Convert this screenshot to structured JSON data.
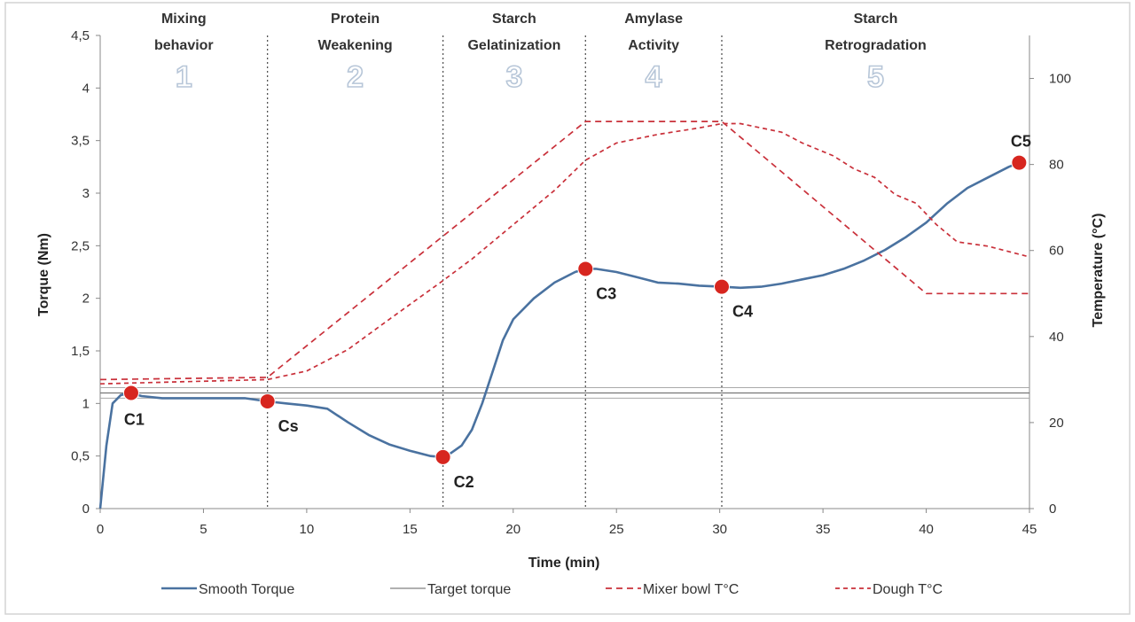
{
  "chart_data": {
    "type": "line",
    "xlabel": "Time (min)",
    "ylabel": "Torque (Nm)",
    "y2label": "Temperature (°C)",
    "xlim": [
      0,
      45
    ],
    "ylim": [
      0,
      4.5
    ],
    "y2lim": [
      0,
      110
    ],
    "xticks": [
      0,
      5,
      10,
      15,
      20,
      25,
      30,
      35,
      40,
      45
    ],
    "xtick_labels": [
      "0",
      "5",
      "10",
      "15",
      "20",
      "25",
      "30",
      "35",
      "40",
      "45"
    ],
    "yticks": [
      0,
      0.5,
      1,
      1.5,
      2,
      2.5,
      3,
      3.5,
      4,
      4.5
    ],
    "ytick_labels": [
      "0",
      "0,5",
      "1",
      "1,5",
      "2",
      "2,5",
      "3",
      "3,5",
      "4",
      "4,5"
    ],
    "y2ticks": [
      0,
      20,
      40,
      60,
      80,
      100
    ],
    "y2tick_labels": [
      "0",
      "20",
      "40",
      "60",
      "80",
      "100"
    ],
    "phase_boundaries": [
      8.1,
      16.6,
      23.5,
      30.1
    ],
    "phases": [
      {
        "number": "1",
        "title": [
          "Mixing",
          "behavior"
        ],
        "start": 0,
        "end": 8.1
      },
      {
        "number": "2",
        "title": [
          "Protein",
          "Weakening"
        ],
        "start": 8.1,
        "end": 16.6
      },
      {
        "number": "3",
        "title": [
          "Starch",
          "Gelatinization"
        ],
        "start": 16.6,
        "end": 23.5
      },
      {
        "number": "4",
        "title": [
          "Amylase",
          "Activity"
        ],
        "start": 23.5,
        "end": 30.1
      },
      {
        "number": "5",
        "title": [
          "Starch",
          "Retrogradation"
        ],
        "start": 30.1,
        "end": 45
      }
    ],
    "target_torque": {
      "center": 1.1,
      "band": [
        1.05,
        1.15
      ]
    },
    "series": [
      {
        "name": "Smooth Torque",
        "axis": "left",
        "color": "#4a72a0",
        "style": "solid",
        "x": [
          0,
          0.3,
          0.6,
          1.0,
          1.5,
          2,
          3,
          4,
          5,
          6,
          7,
          8.1,
          9,
          10,
          11,
          12,
          13,
          14,
          15,
          16,
          16.6,
          17,
          17.5,
          18,
          18.5,
          19,
          19.5,
          20,
          21,
          22,
          23,
          23.5,
          24,
          25,
          26,
          27,
          28,
          29,
          30.1,
          31,
          32,
          33,
          34,
          35,
          36,
          37,
          38,
          39,
          40,
          41,
          42,
          43,
          44,
          44.5
        ],
        "y": [
          0,
          0.6,
          1.0,
          1.08,
          1.1,
          1.07,
          1.05,
          1.05,
          1.05,
          1.05,
          1.05,
          1.02,
          1.0,
          0.98,
          0.95,
          0.82,
          0.7,
          0.61,
          0.55,
          0.5,
          0.49,
          0.53,
          0.6,
          0.75,
          1.0,
          1.3,
          1.6,
          1.8,
          2.0,
          2.15,
          2.25,
          2.28,
          2.28,
          2.25,
          2.2,
          2.15,
          2.14,
          2.12,
          2.11,
          2.1,
          2.11,
          2.14,
          2.18,
          2.22,
          2.28,
          2.36,
          2.46,
          2.58,
          2.72,
          2.9,
          3.05,
          3.15,
          3.25,
          3.29
        ]
      },
      {
        "name": "Target torque",
        "axis": "left",
        "color": "#808080",
        "style": "thin",
        "x": [
          0,
          45
        ],
        "y": [
          1.1,
          1.1
        ]
      },
      {
        "name": "Mixer bowl T°C",
        "axis": "right",
        "color": "#c9303a",
        "style": "dashed",
        "x": [
          0,
          8.1,
          23.5,
          30.1,
          40,
          45
        ],
        "y": [
          30,
          30.5,
          90,
          90,
          50,
          50
        ]
      },
      {
        "name": "Dough T°C",
        "axis": "right",
        "color": "#c9303a",
        "style": "dashed-fine",
        "x": [
          0,
          8.1,
          10,
          12,
          14,
          16.6,
          18,
          20,
          22,
          23.5,
          25,
          27,
          29,
          30.1,
          31,
          33,
          34,
          35.5,
          36.5,
          37.5,
          38.5,
          39.5,
          40.5,
          41.5,
          43,
          45
        ],
        "y": [
          29,
          30,
          32,
          37,
          44,
          53,
          58,
          66,
          74,
          81,
          85,
          87,
          88.5,
          89.5,
          89.5,
          87.5,
          85,
          82,
          79,
          77,
          73,
          71,
          66,
          62,
          61,
          58.5
        ]
      }
    ],
    "points": [
      {
        "label": "C1",
        "x": 1.5,
        "y": 1.1,
        "label_pos": "below"
      },
      {
        "label": "Cs",
        "x": 8.1,
        "y": 1.02,
        "label_pos": "below-right"
      },
      {
        "label": "C2",
        "x": 16.6,
        "y": 0.49,
        "label_pos": "below-right"
      },
      {
        "label": "C3",
        "x": 23.5,
        "y": 2.28,
        "label_pos": "below-right"
      },
      {
        "label": "C4",
        "x": 30.1,
        "y": 2.11,
        "label_pos": "below-right"
      },
      {
        "label": "C5",
        "x": 44.5,
        "y": 3.29,
        "label_pos": "above-left"
      }
    ],
    "legend": {
      "position": "bottom",
      "items": [
        "Smooth Torque",
        "Target torque",
        "Mixer bowl T°C",
        "Dough T°C"
      ]
    },
    "colors": {
      "torque": "#4a72a0",
      "temperature": "#c9303a",
      "point": "#d7261f",
      "phase_number": "#b7c6d8",
      "grid": "#555555"
    }
  }
}
